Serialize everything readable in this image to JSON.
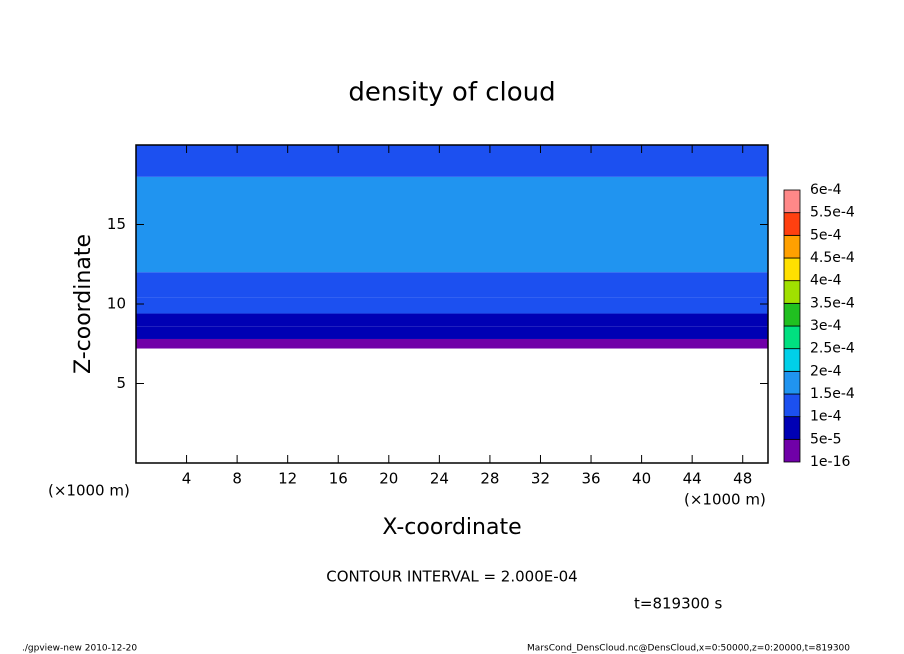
{
  "chart_data": {
    "type": "contour",
    "title": "density of cloud",
    "xlabel": "X-coordinate",
    "ylabel": "Z-coordinate",
    "x_unit": "(×1000 m)",
    "x_unit_right": "(×1000 m)",
    "contour_interval": "CONTOUR INTERVAL = 2.000E-04",
    "time_label": "t=819300 s",
    "footer_left": "./gpview-new  2010-12-20",
    "footer_right": "MarsCond_DensCloud.nc@DensCloud,x=0:50000,z=0:20000,t=819300",
    "xlim": [
      0,
      50
    ],
    "xticks": [
      4,
      8,
      12,
      16,
      20,
      24,
      28,
      32,
      36,
      40,
      44,
      48
    ],
    "ylim": [
      0,
      20
    ],
    "yticks": [
      5,
      10,
      15
    ],
    "z_bins": [
      7.2,
      7.8,
      8.6,
      9.4,
      10.4,
      12,
      18,
      20
    ],
    "values": [
      3e-05,
      7e-05,
      9e-05,
      0.00012,
      0.00014,
      0.00016,
      0.00013
    ],
    "levels": [
      {
        "value": 1e-16,
        "label": "1e-16"
      },
      {
        "value": 5e-05,
        "label": "5e-5"
      },
      {
        "value": 0.0001,
        "label": "1e-4"
      },
      {
        "value": 0.00015,
        "label": "1.5e-4"
      },
      {
        "value": 0.0002,
        "label": "2e-4"
      },
      {
        "value": 0.00025,
        "label": "2.5e-4"
      },
      {
        "value": 0.0003,
        "label": "3e-4"
      },
      {
        "value": 0.00035,
        "label": "3.5e-4"
      },
      {
        "value": 0.0004,
        "label": "4e-4"
      },
      {
        "value": 0.00045,
        "label": "4.5e-4"
      },
      {
        "value": 0.0005,
        "label": "5e-4"
      },
      {
        "value": 0.00055,
        "label": "5.5e-4"
      },
      {
        "value": 0.0006,
        "label": "6e-4"
      }
    ],
    "colors": [
      "#7000a8",
      "#0000b4",
      "#1c50f0",
      "#2094f0",
      "#00d0e8",
      "#00e080",
      "#20c020",
      "#a0e000",
      "#ffe000",
      "#ffa000",
      "#ff4010",
      "#ff8888"
    ]
  }
}
